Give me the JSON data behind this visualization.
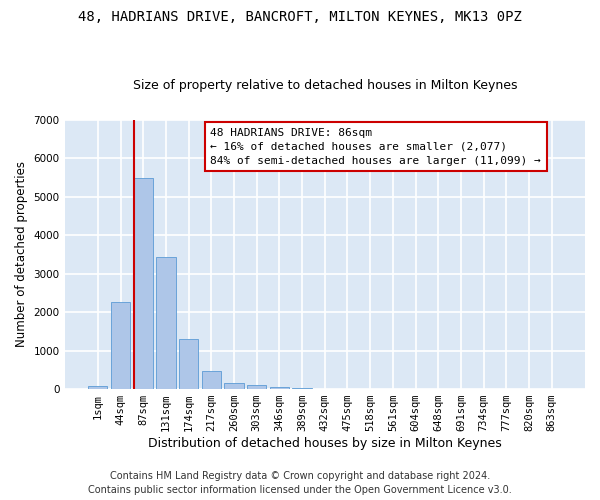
{
  "title": "48, HADRIANS DRIVE, BANCROFT, MILTON KEYNES, MK13 0PZ",
  "subtitle": "Size of property relative to detached houses in Milton Keynes",
  "xlabel": "Distribution of detached houses by size in Milton Keynes",
  "ylabel": "Number of detached properties",
  "footer_line1": "Contains HM Land Registry data © Crown copyright and database right 2024.",
  "footer_line2": "Contains public sector information licensed under the Open Government Licence v3.0.",
  "bar_labels": [
    "1sqm",
    "44sqm",
    "87sqm",
    "131sqm",
    "174sqm",
    "217sqm",
    "260sqm",
    "303sqm",
    "346sqm",
    "389sqm",
    "432sqm",
    "475sqm",
    "518sqm",
    "561sqm",
    "604sqm",
    "648sqm",
    "691sqm",
    "734sqm",
    "777sqm",
    "820sqm",
    "863sqm"
  ],
  "bar_values": [
    75,
    2270,
    5470,
    3440,
    1310,
    470,
    160,
    95,
    60,
    40,
    0,
    0,
    0,
    0,
    0,
    0,
    0,
    0,
    0,
    0,
    0
  ],
  "bar_color": "#aec6e8",
  "bar_edge_color": "#5b9bd5",
  "background_color": "#dce8f5",
  "grid_color": "#ffffff",
  "annotation_line1": "48 HADRIANS DRIVE: 86sqm",
  "annotation_line2": "← 16% of detached houses are smaller (2,077)",
  "annotation_line3": "84% of semi-detached houses are larger (11,099) →",
  "annotation_box_color": "#ffffff",
  "annotation_box_edge_color": "#cc0000",
  "vline_color": "#cc0000",
  "ylim": [
    0,
    7000
  ],
  "yticks": [
    0,
    1000,
    2000,
    3000,
    4000,
    5000,
    6000,
    7000
  ],
  "title_fontsize": 10,
  "subtitle_fontsize": 9,
  "xlabel_fontsize": 9,
  "ylabel_fontsize": 8.5,
  "tick_fontsize": 7.5,
  "annotation_fontsize": 8,
  "footer_fontsize": 7
}
